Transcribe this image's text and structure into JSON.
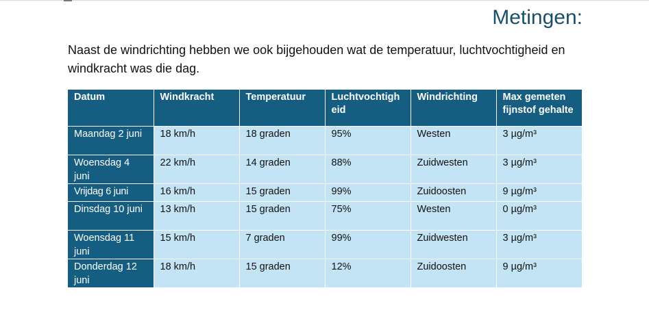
{
  "title": "Metingen:",
  "intro": "Naast de windrichting hebben we ook bijgehouden wat de temperatuur, luchtvochtigheid en windkracht was die dag.",
  "table": {
    "headers": [
      "Datum",
      "Windkracht",
      "Temperatuur",
      "Luchtvochtigheid",
      "Windrichting",
      "Max gemeten fijnstof gehalte"
    ],
    "rows": [
      [
        "Maandag 2 juni",
        "18 km/h",
        "18 graden",
        "95%",
        "Westen",
        "3 µg/m³"
      ],
      [
        "Woensdag 4 juni",
        "22 km/h",
        "14 graden",
        "88%",
        "Zuidwesten",
        "3 µg/m³"
      ],
      [
        "Vrijdag 6 juni",
        "16 km/h",
        "15 graden",
        "99%",
        "Zuidoosten",
        "9 µg/m³"
      ],
      [
        "Dinsdag 10 juni",
        "13 km/h",
        "15 graden",
        "75%",
        "Westen",
        "0 µg/m³"
      ],
      [
        "Woensdag 11 juni",
        "15 km/h",
        "7 graden",
        "99%",
        "Zuidwesten",
        "3 µg/m³"
      ],
      [
        "Donderdag 12 juni",
        "18 km/h",
        "15 graden",
        "12%",
        "Zuidoosten",
        "9 µg/m³"
      ]
    ]
  }
}
